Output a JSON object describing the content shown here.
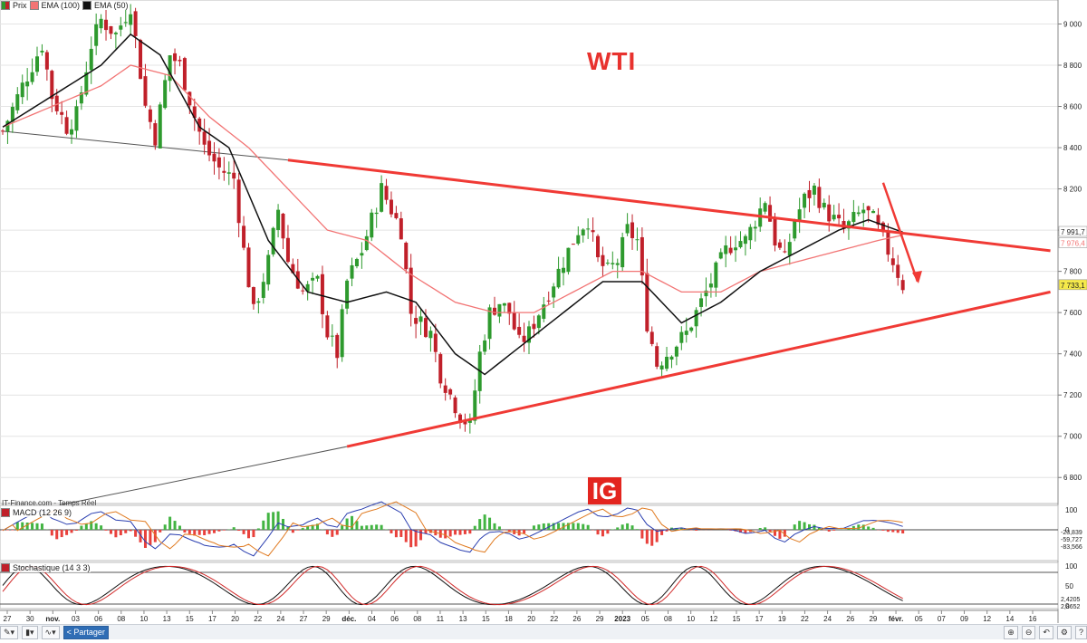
{
  "title": "WTI",
  "watermark": "IG",
  "source": "IT-Finance.com - Temps Réel",
  "legend": {
    "price": "Prix",
    "ema100": "EMA (100)",
    "ema50": "EMA (50)",
    "macd": "MACD (12 26 9)",
    "stoch": "Stochastique (14 3 3)"
  },
  "colors": {
    "up": "#2e9a2e",
    "down": "#c0202a",
    "ema100": "#f27474",
    "ema50": "#111111",
    "trendline": "#f03a35",
    "histUp": "#42b442",
    "histDown": "#e8413c"
  },
  "price_tags": {
    "ema50": "7 991,7",
    "ema100": "7 976,4",
    "last": "7 733,1"
  },
  "macd_tags": [
    "-23,839",
    "-59,727",
    "-83,566"
  ],
  "stoch_tags": [
    "2,4205",
    "2,8652"
  ],
  "stoch_axis": [
    "100",
    "50",
    "0"
  ],
  "macd_axis": [
    "100",
    "0"
  ],
  "toolbar": {
    "share": "Partager"
  },
  "chart_data": {
    "type": "candlestick",
    "title": "WTI",
    "yticks": [
      "9 000",
      "8 800",
      "8 600",
      "8 400",
      "8 200",
      "8 000",
      "7 800",
      "7 600",
      "7 400",
      "7 200",
      "7 000",
      "6 800"
    ],
    "ytick_values": [
      9000,
      8800,
      8600,
      8400,
      8200,
      8000,
      7800,
      7600,
      7400,
      7200,
      7000,
      6800
    ],
    "ylim": [
      6700,
      9090
    ],
    "xticks": [
      "27",
      "30",
      "nov.",
      "03",
      "06",
      "08",
      "10",
      "13",
      "15",
      "17",
      "20",
      "22",
      "24",
      "27",
      "29",
      "déc.",
      "04",
      "06",
      "08",
      "11",
      "13",
      "15",
      "18",
      "20",
      "22",
      "26",
      "29",
      "2023",
      "05",
      "08",
      "10",
      "12",
      "15",
      "17",
      "19",
      "22",
      "24",
      "26",
      "29",
      "févr.",
      "05",
      "07",
      "09",
      "12",
      "14",
      "16"
    ],
    "bold_ticks": [
      "nov.",
      "déc.",
      "2023",
      "févr."
    ],
    "price_path": [
      [
        0,
        8480
      ],
      [
        4,
        8700
      ],
      [
        8,
        8900
      ],
      [
        10,
        8650
      ],
      [
        13,
        8500
      ],
      [
        15,
        8560
      ],
      [
        18,
        8900
      ],
      [
        20,
        9020
      ],
      [
        23,
        8950
      ],
      [
        26,
        9090
      ],
      [
        29,
        8600
      ],
      [
        31,
        8450
      ],
      [
        34,
        8850
      ],
      [
        36,
        8800
      ],
      [
        39,
        8550
      ],
      [
        41,
        8400
      ],
      [
        44,
        8300
      ],
      [
        47,
        8250
      ],
      [
        49,
        7900
      ],
      [
        51,
        7600
      ],
      [
        54,
        7850
      ],
      [
        56,
        8100
      ],
      [
        58,
        7850
      ],
      [
        61,
        7700
      ],
      [
        64,
        7750
      ],
      [
        66,
        7500
      ],
      [
        68,
        7400
      ],
      [
        70,
        7750
      ],
      [
        73,
        7900
      ],
      [
        75,
        8050
      ],
      [
        77,
        8200
      ],
      [
        79,
        8100
      ],
      [
        81,
        8000
      ],
      [
        83,
        7600
      ],
      [
        85,
        7550
      ],
      [
        87,
        7500
      ],
      [
        89,
        7300
      ],
      [
        91,
        7200
      ],
      [
        93,
        7100
      ],
      [
        95,
        7050
      ],
      [
        97,
        7400
      ],
      [
        99,
        7600
      ],
      [
        101,
        7650
      ],
      [
        103,
        7600
      ],
      [
        105,
        7450
      ],
      [
        107,
        7500
      ],
      [
        109,
        7600
      ],
      [
        111,
        7700
      ],
      [
        113,
        7800
      ],
      [
        115,
        7900
      ],
      [
        117,
        8000
      ],
      [
        119,
        8050
      ],
      [
        121,
        7850
      ],
      [
        123,
        7800
      ],
      [
        125,
        7850
      ],
      [
        127,
        8000
      ],
      [
        129,
        7950
      ],
      [
        131,
        7550
      ],
      [
        133,
        7350
      ],
      [
        135,
        7400
      ],
      [
        137,
        7450
      ],
      [
        139,
        7500
      ],
      [
        141,
        7600
      ],
      [
        143,
        7700
      ],
      [
        145,
        7800
      ],
      [
        147,
        7900
      ],
      [
        149,
        7950
      ],
      [
        151,
        7950
      ],
      [
        153,
        8050
      ],
      [
        155,
        8150
      ],
      [
        157,
        7950
      ],
      [
        159,
        7850
      ],
      [
        161,
        8050
      ],
      [
        163,
        8150
      ],
      [
        165,
        8200
      ],
      [
        167,
        8100
      ],
      [
        169,
        8050
      ],
      [
        171,
        8000
      ],
      [
        173,
        8050
      ],
      [
        175,
        8100
      ],
      [
        177,
        8050
      ],
      [
        179,
        7950
      ],
      [
        181,
        7850
      ],
      [
        183,
        7733
      ]
    ],
    "ema50_path": [
      [
        0,
        8500
      ],
      [
        10,
        8650
      ],
      [
        20,
        8800
      ],
      [
        26,
        8950
      ],
      [
        32,
        8850
      ],
      [
        40,
        8500
      ],
      [
        46,
        8400
      ],
      [
        54,
        7950
      ],
      [
        62,
        7700
      ],
      [
        70,
        7650
      ],
      [
        78,
        7700
      ],
      [
        84,
        7650
      ],
      [
        92,
        7400
      ],
      [
        98,
        7300
      ],
      [
        106,
        7450
      ],
      [
        114,
        7600
      ],
      [
        122,
        7750
      ],
      [
        130,
        7750
      ],
      [
        138,
        7550
      ],
      [
        146,
        7650
      ],
      [
        154,
        7800
      ],
      [
        162,
        7900
      ],
      [
        170,
        8000
      ],
      [
        176,
        8050
      ],
      [
        183,
        7990
      ]
    ],
    "ema100_path": [
      [
        0,
        8500
      ],
      [
        10,
        8600
      ],
      [
        20,
        8700
      ],
      [
        26,
        8800
      ],
      [
        34,
        8750
      ],
      [
        42,
        8550
      ],
      [
        50,
        8400
      ],
      [
        58,
        8200
      ],
      [
        66,
        8000
      ],
      [
        74,
        7950
      ],
      [
        82,
        7800
      ],
      [
        92,
        7650
      ],
      [
        100,
        7600
      ],
      [
        108,
        7600
      ],
      [
        116,
        7700
      ],
      [
        124,
        7800
      ],
      [
        130,
        7800
      ],
      [
        138,
        7700
      ],
      [
        146,
        7700
      ],
      [
        154,
        7800
      ],
      [
        162,
        7850
      ],
      [
        170,
        7900
      ],
      [
        178,
        7950
      ],
      [
        183,
        7976
      ]
    ],
    "trendlines": [
      {
        "name": "resistance",
        "from": [
          58,
          8340
        ],
        "to": [
          213,
          7900
        ]
      },
      {
        "name": "support",
        "from": [
          70,
          6950
        ],
        "to": [
          213,
          7700
        ]
      },
      {
        "name": "resistance-ext",
        "from": [
          0,
          8480
        ],
        "to": [
          58,
          8340
        ]
      },
      {
        "name": "support-ext",
        "from": [
          0,
          6610
        ],
        "to": [
          70,
          6950
        ]
      }
    ],
    "down_arrow": {
      "from": [
        179,
        8230
      ],
      "to": [
        186,
        7750
      ]
    }
  }
}
